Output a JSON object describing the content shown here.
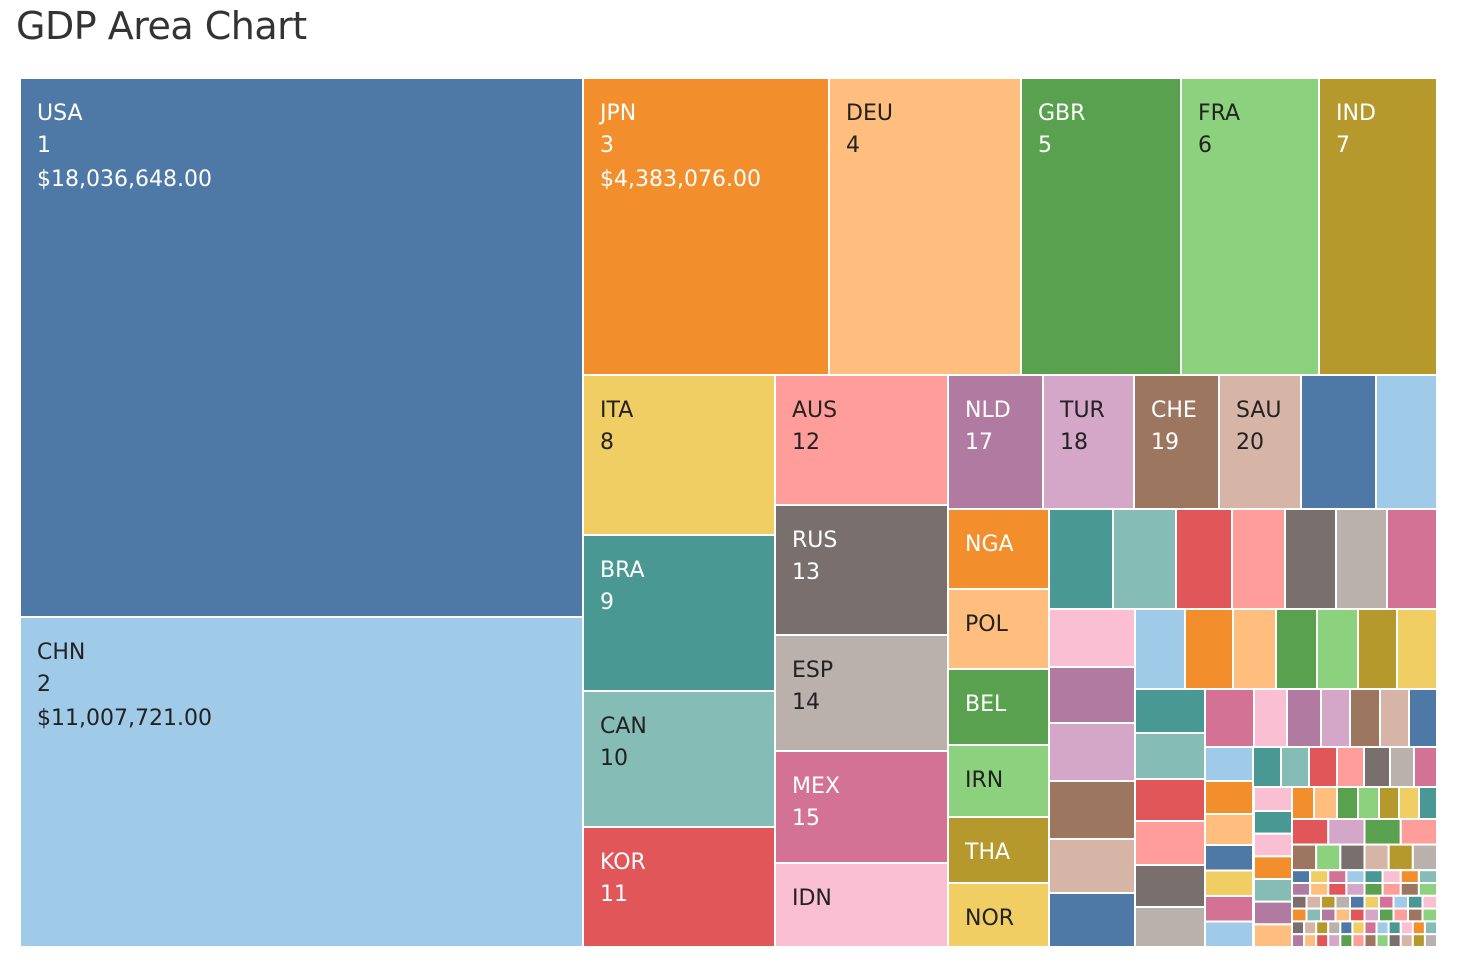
{
  "title": "GDP Area Chart",
  "chart_data": {
    "type": "treemap",
    "title": "GDP Area Chart",
    "colors": {
      "blue": "#4e79a7",
      "lightblue": "#a0cbe8",
      "orange": "#f28e2b",
      "lightorange": "#ffbe7d",
      "green": "#59a14f",
      "lightgreen": "#8cd17d",
      "olive": "#b6992d",
      "yellow": "#f1ce63",
      "teal": "#499894",
      "lightteal": "#86bcb6",
      "red": "#e15759",
      "pink": "#ff9d9a",
      "gray": "#79706e",
      "lightgray": "#bab0ac",
      "rose": "#d37295",
      "lightpink": "#fabfd2",
      "purple": "#b07aa1",
      "lightpurple": "#d4a6c8",
      "brown": "#9d7660",
      "tan": "#d7b5a6"
    },
    "labeled_tiles": [
      {
        "code": "USA",
        "rank": "1",
        "value": "$18,036,648.00",
        "color": "#4e79a7"
      },
      {
        "code": "CHN",
        "rank": "2",
        "value": "$11,007,721.00",
        "color": "#a0cbe8"
      },
      {
        "code": "JPN",
        "rank": "3",
        "value": "$4,383,076.00",
        "color": "#f28e2b"
      },
      {
        "code": "DEU",
        "rank": "4",
        "color": "#ffbe7d"
      },
      {
        "code": "GBR",
        "rank": "5",
        "color": "#59a14f"
      },
      {
        "code": "FRA",
        "rank": "6",
        "color": "#8cd17d"
      },
      {
        "code": "IND",
        "rank": "7",
        "color": "#b6992d"
      },
      {
        "code": "ITA",
        "rank": "8",
        "color": "#f1ce63"
      },
      {
        "code": "BRA",
        "rank": "9",
        "color": "#499894"
      },
      {
        "code": "CAN",
        "rank": "10",
        "color": "#86bcb6"
      },
      {
        "code": "KOR",
        "rank": "11",
        "color": "#e15759"
      },
      {
        "code": "AUS",
        "rank": "12",
        "color": "#ff9d9a"
      },
      {
        "code": "RUS",
        "rank": "13",
        "color": "#79706e"
      },
      {
        "code": "ESP",
        "rank": "14",
        "color": "#bab0ac"
      },
      {
        "code": "MEX",
        "rank": "15",
        "color": "#d37295"
      },
      {
        "code": "IDN",
        "color": "#fabfd2"
      },
      {
        "code": "NLD",
        "rank": "17",
        "color": "#b07aa1"
      },
      {
        "code": "TUR",
        "rank": "18",
        "color": "#d4a6c8"
      },
      {
        "code": "CHE",
        "rank": "19",
        "color": "#9d7660"
      },
      {
        "code": "SAU",
        "rank": "20",
        "color": "#d7b5a6"
      },
      {
        "code": "NGA",
        "color": "#f28e2b"
      },
      {
        "code": "POL",
        "color": "#ffbe7d"
      },
      {
        "code": "BEL",
        "color": "#59a14f"
      },
      {
        "code": "IRN",
        "color": "#8cd17d"
      },
      {
        "code": "THA",
        "color": "#b6992d"
      },
      {
        "code": "NOR",
        "color": "#f1ce63"
      }
    ],
    "unlabeled_tile_colors": [
      "#4e79a7",
      "#a0cbe8",
      "#499894",
      "#86bcb6",
      "#e15759",
      "#ff9d9a",
      "#79706e",
      "#bab0ac",
      "#d37295",
      "#fabfd2",
      "#a0cbe8",
      "#f28e2b",
      "#ffbe7d",
      "#59a14f",
      "#8cd17d",
      "#b6992d",
      "#f1ce63",
      "#b07aa1",
      "#d4a6c8",
      "#9d7660",
      "#d7b5a6",
      "#4e79a7",
      "#499894",
      "#86bcb6",
      "#e15759",
      "#ff9d9a",
      "#79706e",
      "#bab0ac",
      "#d37295",
      "#fabfd2",
      "#b07aa1",
      "#d4a6c8",
      "#9d7660",
      "#d7b5a6",
      "#4e79a7",
      "#a0cbe8",
      "#499894",
      "#86bcb6",
      "#e15759",
      "#ff9d9a",
      "#79706e",
      "#bab0ac",
      "#d37295",
      "#f28e2b",
      "#ffbe7d",
      "#fabfd2",
      "#f28e2b",
      "#ffbe7d",
      "#59a14f",
      "#8cd17d",
      "#b6992d",
      "#f1ce63",
      "#499894"
    ]
  }
}
